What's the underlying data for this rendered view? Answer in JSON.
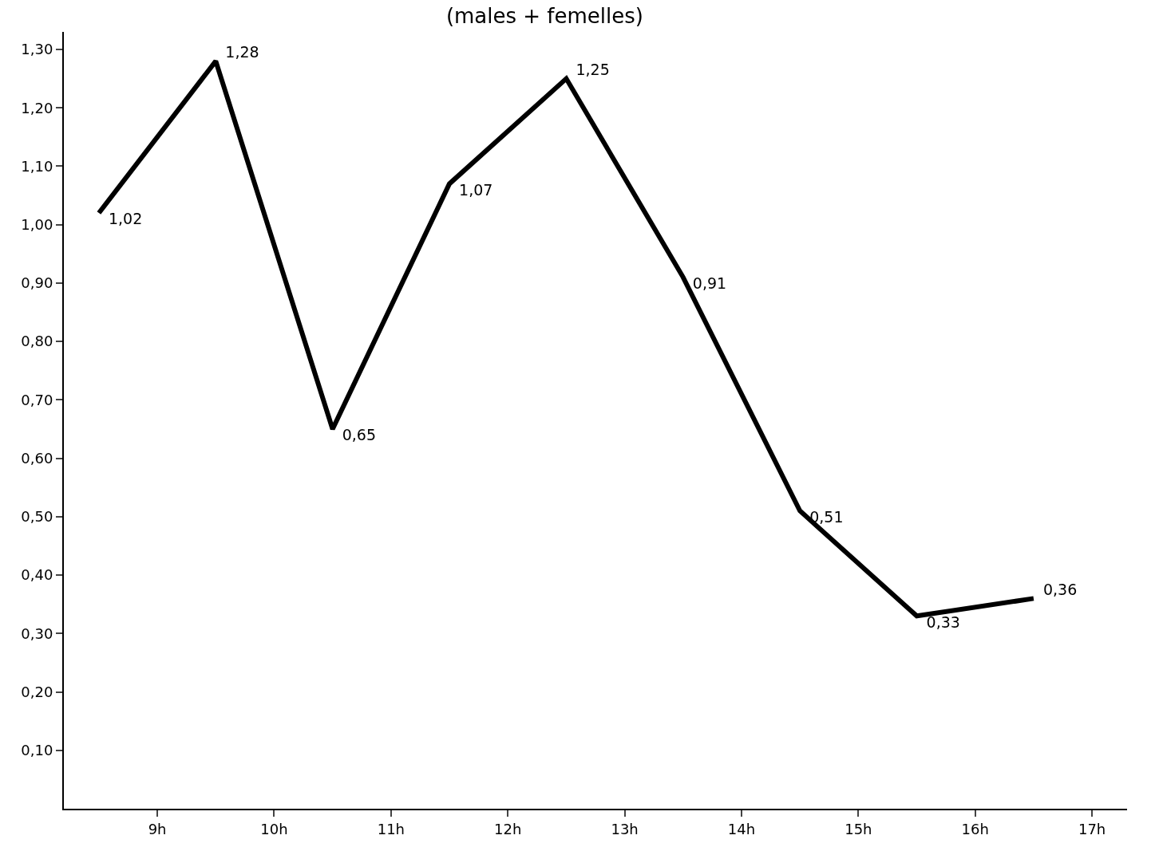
{
  "chart_data": {
    "type": "line",
    "title": "(males + femelles)",
    "x": [
      8.5,
      9.5,
      10.5,
      11.5,
      12.5,
      13.5,
      14.5,
      15.5,
      16.5
    ],
    "series": [
      {
        "color": "#000000",
        "values": [
          1.02,
          1.28,
          0.65,
          1.07,
          1.25,
          0.91,
          0.51,
          0.33,
          0.36
        ],
        "value_labels": [
          "1,02",
          "1,28",
          "0,65",
          "1,07",
          "1,25",
          "0,91",
          "0,51",
          "0,33",
          "0,36"
        ]
      }
    ],
    "xlim": [
      8.2,
      17.3
    ],
    "xticks": [
      {
        "value": 9,
        "label": "9h"
      },
      {
        "value": 10,
        "label": "10h"
      },
      {
        "value": 11,
        "label": "11h"
      },
      {
        "value": 12,
        "label": "12h"
      },
      {
        "value": 13,
        "label": "13h"
      },
      {
        "value": 14,
        "label": "14h"
      },
      {
        "value": 15,
        "label": "15h"
      },
      {
        "value": 16,
        "label": "16h"
      },
      {
        "value": 17,
        "label": "17h"
      }
    ],
    "ylim": [
      0,
      1.33
    ],
    "yticks": [
      {
        "value": 0.1,
        "label": "0,10"
      },
      {
        "value": 0.2,
        "label": "0,20"
      },
      {
        "value": 0.3,
        "label": "0,30"
      },
      {
        "value": 0.4,
        "label": "0,40"
      },
      {
        "value": 0.5,
        "label": "0,50"
      },
      {
        "value": 0.6,
        "label": "0,60"
      },
      {
        "value": 0.7,
        "label": "0,70"
      },
      {
        "value": 0.8,
        "label": "0,80"
      },
      {
        "value": 0.9,
        "label": "0,90"
      },
      {
        "value": 1.0,
        "label": "1,00"
      },
      {
        "value": 1.1,
        "label": "1,10"
      },
      {
        "value": 1.2,
        "label": "1,20"
      },
      {
        "value": 1.3,
        "label": "1,30"
      }
    ],
    "grid": false,
    "marker": "none",
    "line_style": "solid"
  }
}
